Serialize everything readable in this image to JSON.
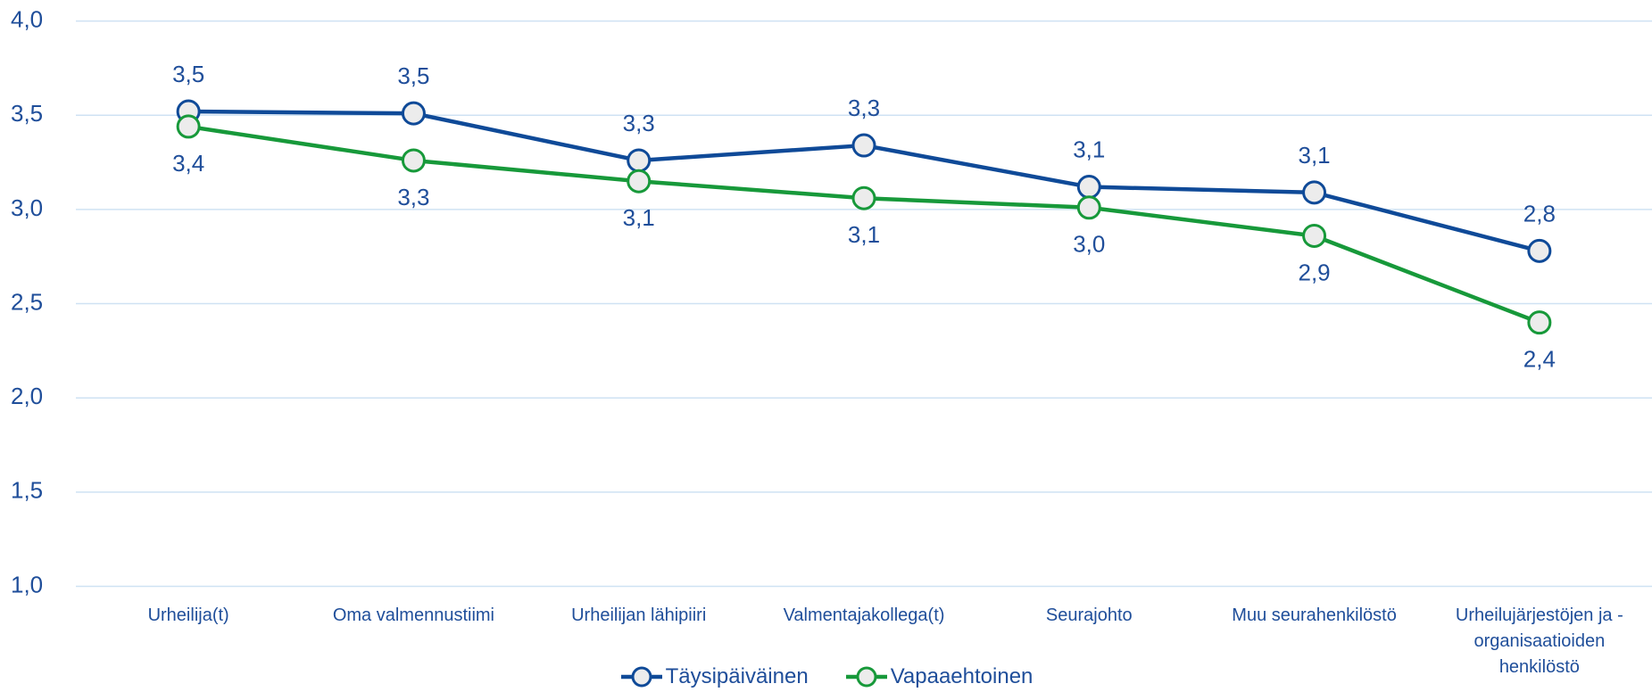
{
  "chart_data": {
    "type": "line",
    "categories": [
      "Urheilija(t)",
      "Oma valmennustiimi",
      "Urheilijan lähipiiri",
      "Valmentajakollega(t)",
      "Seurajohto",
      "Muu seurahenkilöstö",
      "Urheilujärjestöjen ja -organisaatioiden henkilöstö"
    ],
    "series": [
      {
        "name": "Täysipäiväinen",
        "color": "#0f4a98",
        "values": [
          3.52,
          3.51,
          3.26,
          3.34,
          3.12,
          3.09,
          2.78
        ],
        "value_labels": [
          "3,5",
          "3,5",
          "3,3",
          "3,3",
          "3,1",
          "3,1",
          "2,8"
        ]
      },
      {
        "name": "Vapaaehtoinen",
        "color": "#17993a",
        "values": [
          3.44,
          3.26,
          3.15,
          3.06,
          3.01,
          2.86,
          2.4
        ],
        "value_labels": [
          "3,4",
          "3,3",
          "3,1",
          "3,1",
          "3,0",
          "2,9",
          "2,4"
        ]
      }
    ],
    "ylim": [
      1.0,
      4.0
    ],
    "yticks": [
      {
        "value": 1.0,
        "label": "1,0"
      },
      {
        "value": 1.5,
        "label": "1,5"
      },
      {
        "value": 2.0,
        "label": "2,0"
      },
      {
        "value": 2.5,
        "label": "2,5"
      },
      {
        "value": 3.0,
        "label": "3,0"
      },
      {
        "value": 3.5,
        "label": "3,5"
      },
      {
        "value": 4.0,
        "label": "4,0"
      }
    ],
    "grid": true,
    "legend": "bottom"
  }
}
